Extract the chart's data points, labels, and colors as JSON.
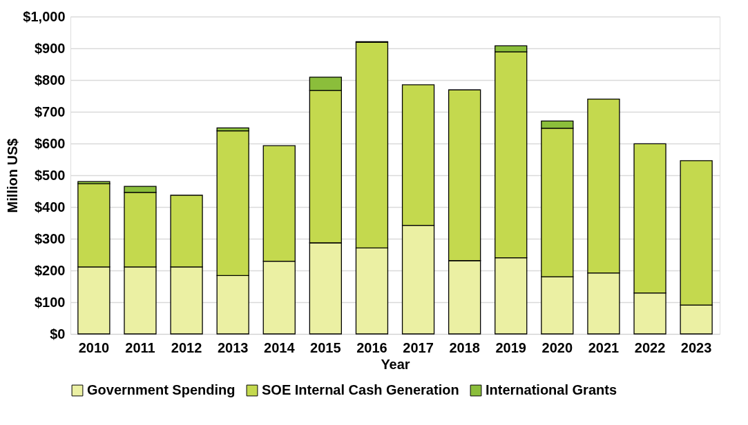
{
  "chart_data": {
    "type": "bar",
    "stacked": true,
    "xlabel": "Year",
    "ylabel": "Million US$",
    "categories": [
      "2010",
      "2011",
      "2012",
      "2013",
      "2014",
      "2015",
      "2016",
      "2017",
      "2018",
      "2019",
      "2020",
      "2021",
      "2022",
      "2023"
    ],
    "series": [
      {
        "name": "Government Spending",
        "color": "#ebf0a3",
        "values": [
          211,
          211,
          211,
          184,
          229,
          287,
          271,
          342,
          231,
          240,
          180,
          192,
          129,
          91
        ]
      },
      {
        "name": "SOE Internal Cash Generation",
        "color": "#c4d94e",
        "values": [
          262,
          235,
          226,
          456,
          364,
          480,
          648,
          443,
          538,
          649,
          468,
          548,
          470,
          455
        ]
      },
      {
        "name": "International Grants",
        "color": "#8bbe3b",
        "values": [
          7,
          19,
          null,
          9,
          null,
          42,
          2,
          null,
          null,
          19,
          23,
          null,
          null,
          null
        ]
      }
    ],
    "ylim": [
      0,
      1000
    ],
    "yticks": [
      {
        "value": 0,
        "label": "$0"
      },
      {
        "value": 100,
        "label": "$100"
      },
      {
        "value": 200,
        "label": "$200"
      },
      {
        "value": 300,
        "label": "$300"
      },
      {
        "value": 400,
        "label": "$400"
      },
      {
        "value": 500,
        "label": "$500"
      },
      {
        "value": 600,
        "label": "$600"
      },
      {
        "value": 700,
        "label": "$700"
      },
      {
        "value": 800,
        "label": "$800"
      },
      {
        "value": 900,
        "label": "$900"
      },
      {
        "value": 1000,
        "label": "$1,000"
      }
    ],
    "grid": "y",
    "legend": "bottom"
  }
}
